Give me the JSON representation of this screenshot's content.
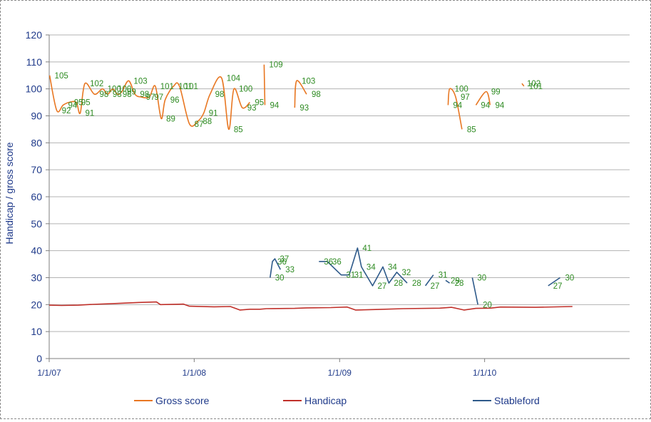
{
  "chart_data": {
    "type": "line",
    "title": "",
    "xlabel": "",
    "ylabel": "Handicap / gross score",
    "ylim": [
      0,
      120
    ],
    "yticks": [
      0,
      10,
      20,
      30,
      40,
      50,
      60,
      70,
      80,
      90,
      100,
      110,
      120
    ],
    "xlim": [
      "2007-01-01",
      "2011-01-01"
    ],
    "xticks": [
      {
        "date": "2007-01-01",
        "label": "1/1/07"
      },
      {
        "date": "2008-01-01",
        "label": "1/1/08"
      },
      {
        "date": "2009-01-01",
        "label": "1/1/09"
      },
      {
        "date": "2010-01-01",
        "label": "1/1/10"
      }
    ],
    "grid": "horizontal",
    "legend_position": "bottom",
    "series": [
      {
        "name": "Gross score",
        "color": "#e87722",
        "smooth": true,
        "show_labels": true,
        "label_color": "#2e8b22",
        "segments": [
          [
            [
              "2007-01-02",
              105
            ],
            [
              "2007-01-20",
              92
            ],
            [
              "2007-02-05",
              94
            ],
            [
              "2007-02-20",
              95
            ],
            [
              "2007-03-10",
              95
            ],
            [
              "2007-03-20",
              91
            ],
            [
              "2007-04-01",
              102
            ],
            [
              "2007-04-25",
              98
            ],
            [
              "2007-05-15",
              100
            ],
            [
              "2007-05-28",
              98
            ],
            [
              "2007-06-10",
              100
            ],
            [
              "2007-06-22",
              98
            ],
            [
              "2007-07-03",
              99
            ],
            [
              "2007-07-20",
              103
            ],
            [
              "2007-08-05",
              98
            ],
            [
              "2007-08-20",
              97
            ],
            [
              "2007-09-10",
              97
            ],
            [
              "2007-09-25",
              101
            ],
            [
              "2007-10-10",
              89
            ],
            [
              "2007-10-20",
              96
            ],
            [
              "2007-11-10",
              101
            ],
            [
              "2007-11-25",
              101
            ],
            [
              "2007-12-20",
              87
            ],
            [
              "2008-01-10",
              88
            ],
            [
              "2008-01-25",
              91
            ],
            [
              "2008-02-10",
              98
            ],
            [
              "2008-03-10",
              104
            ],
            [
              "2008-03-28",
              85
            ],
            [
              "2008-04-10",
              100
            ],
            [
              "2008-05-01",
              93
            ],
            [
              "2008-05-20",
              95
            ]
          ],
          [
            [
              "2008-06-25",
              109
            ],
            [
              "2008-06-27",
              94
            ]
          ],
          [
            [
              "2008-09-10",
              93
            ],
            [
              "2008-09-15",
              103
            ],
            [
              "2008-10-10",
              98
            ]
          ],
          [
            [
              "2009-10-01",
              94
            ],
            [
              "2009-10-05",
              100
            ],
            [
              "2009-10-20",
              97
            ],
            [
              "2009-11-05",
              85
            ]
          ],
          [
            [
              "2009-12-10",
              94
            ],
            [
              "2010-01-05",
              99
            ],
            [
              "2010-01-15",
              94
            ]
          ],
          [
            [
              "2010-04-05",
              102
            ],
            [
              "2010-04-10",
              101
            ]
          ]
        ]
      },
      {
        "name": "Handicap",
        "color": "#c0302a",
        "smooth": false,
        "show_labels": false,
        "segments": [
          [
            [
              "2007-01-01",
              19.8
            ],
            [
              "2007-02-01",
              19.7
            ],
            [
              "2007-03-15",
              19.8
            ],
            [
              "2007-04-20",
              20.1
            ],
            [
              "2007-06-15",
              20.4
            ],
            [
              "2007-08-15",
              20.8
            ],
            [
              "2007-09-28",
              21.0
            ],
            [
              "2007-10-08",
              20.0
            ],
            [
              "2007-12-05",
              20.2
            ],
            [
              "2007-12-20",
              19.4
            ],
            [
              "2008-02-20",
              19.2
            ],
            [
              "2008-04-01",
              19.3
            ],
            [
              "2008-04-25",
              18.0
            ],
            [
              "2008-05-20",
              18.3
            ],
            [
              "2008-06-15",
              18.3
            ],
            [
              "2008-07-01",
              18.5
            ],
            [
              "2008-09-10",
              18.6
            ],
            [
              "2008-10-10",
              18.8
            ],
            [
              "2008-12-10",
              18.9
            ],
            [
              "2009-01-20",
              19.1
            ],
            [
              "2009-02-10",
              18.0
            ],
            [
              "2009-04-10",
              18.2
            ],
            [
              "2009-06-10",
              18.5
            ],
            [
              "2009-09-10",
              18.7
            ],
            [
              "2009-10-10",
              19.0
            ],
            [
              "2009-11-10",
              18.0
            ],
            [
              "2009-12-10",
              18.6
            ],
            [
              "2010-01-15",
              18.7
            ],
            [
              "2010-02-10",
              19.1
            ],
            [
              "2010-05-10",
              19.0
            ],
            [
              "2010-08-10",
              19.3
            ]
          ]
        ]
      },
      {
        "name": "Stableford",
        "color": "#2e5a8a",
        "smooth": false,
        "show_labels": true,
        "label_color": "#2e8b22",
        "segments": [
          [
            [
              "2008-07-10",
              30
            ],
            [
              "2008-07-16",
              36
            ],
            [
              "2008-07-22",
              37
            ],
            [
              "2008-08-05",
              33
            ]
          ],
          [
            [
              "2008-11-10",
              36
            ],
            [
              "2008-12-01",
              36
            ],
            [
              "2009-01-05",
              31
            ],
            [
              "2009-01-25",
              31
            ],
            [
              "2009-02-15",
              41
            ],
            [
              "2009-02-25",
              34
            ],
            [
              "2009-03-25",
              27
            ],
            [
              "2009-04-20",
              34
            ],
            [
              "2009-05-05",
              28
            ],
            [
              "2009-05-25",
              32
            ],
            [
              "2009-06-20",
              28
            ]
          ],
          [
            [
              "2009-08-05",
              27
            ],
            [
              "2009-08-25",
              31
            ]
          ],
          [
            [
              "2009-09-25",
              29
            ],
            [
              "2009-10-05",
              28
            ]
          ],
          [
            [
              "2009-12-01",
              30
            ],
            [
              "2009-12-15",
              20
            ]
          ],
          [
            [
              "2010-06-10",
              27
            ],
            [
              "2010-07-10",
              30
            ]
          ]
        ]
      }
    ]
  }
}
